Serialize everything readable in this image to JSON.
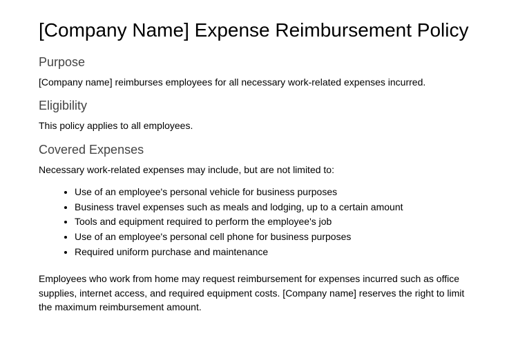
{
  "title": "[Company Name] Expense Reimbursement Policy",
  "sections": {
    "purpose": {
      "heading": "Purpose",
      "body": "[Company name] reimburses employees for all necessary work-related expenses incurred."
    },
    "eligibility": {
      "heading": "Eligibility",
      "body": "This policy applies to all employees."
    },
    "covered": {
      "heading": "Covered Expenses",
      "intro": "Necessary work-related expenses may include, but are not limited to:",
      "items": [
        "Use of an employee's personal vehicle for business purposes",
        "Business travel expenses such as meals and lodging, up to a certain amount",
        "Tools and equipment required to perform the employee's job",
        "Use of an employee's personal cell phone for business purposes",
        "Required uniform purchase and maintenance"
      ],
      "wfh_note": "Employees who work from home may request reimbursement for expenses incurred such as office supplies, internet access, and required equipment costs. [Company name] reserves the right to limit the maximum reimbursement amount."
    }
  }
}
